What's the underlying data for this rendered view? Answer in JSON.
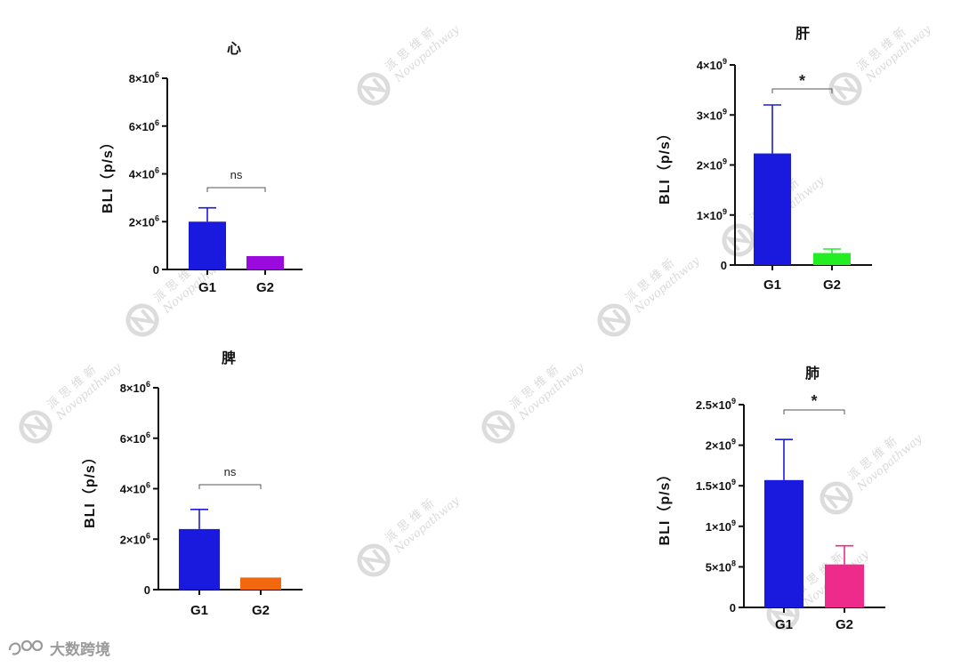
{
  "footer": {
    "brand": "大数跨境"
  },
  "watermark": {
    "cn": "派思维新",
    "en": "Novopathway"
  },
  "charts": [
    {
      "title": "心",
      "ylabel": "BLI（p/s）",
      "yticks": [
        {
          "v": 0,
          "m": "0",
          "e": ""
        },
        {
          "v": 2000000,
          "m": "2×10",
          "e": "6"
        },
        {
          "v": 4000000,
          "m": "4×10",
          "e": "6"
        },
        {
          "v": 6000000,
          "m": "6×10",
          "e": "6"
        },
        {
          "v": 8000000,
          "m": "8×10",
          "e": "6"
        }
      ],
      "sig": "ns"
    },
    {
      "title": "肝",
      "ylabel": "BLI（p/s）",
      "yticks": [
        {
          "v": 0,
          "m": "0",
          "e": ""
        },
        {
          "v": 1000000000,
          "m": "1×10",
          "e": "9"
        },
        {
          "v": 2000000000,
          "m": "2×10",
          "e": "9"
        },
        {
          "v": 3000000000,
          "m": "3×10",
          "e": "9"
        },
        {
          "v": 4000000000,
          "m": "4×10",
          "e": "9"
        }
      ],
      "sig": "*"
    },
    {
      "title": "脾",
      "ylabel": "BLI（p/s）",
      "yticks": [
        {
          "v": 0,
          "m": "0",
          "e": ""
        },
        {
          "v": 2000000,
          "m": "2×10",
          "e": "6"
        },
        {
          "v": 4000000,
          "m": "4×10",
          "e": "6"
        },
        {
          "v": 6000000,
          "m": "6×10",
          "e": "6"
        },
        {
          "v": 8000000,
          "m": "8×10",
          "e": "6"
        }
      ],
      "sig": "ns"
    },
    {
      "title": "肺",
      "ylabel": "BLI（p/s）",
      "yticks": [
        {
          "v": 0,
          "m": "0",
          "e": ""
        },
        {
          "v": 500000000,
          "m": "5×10",
          "e": "8"
        },
        {
          "v": 1000000000,
          "m": "1×10",
          "e": "9"
        },
        {
          "v": 1500000000,
          "m": "1.5×10",
          "e": "9"
        },
        {
          "v": 2000000000,
          "m": "2×10",
          "e": "9"
        },
        {
          "v": 2500000000,
          "m": "2.5×10",
          "e": "9"
        }
      ],
      "sig": "*"
    }
  ],
  "chart_data": [
    {
      "type": "bar",
      "title": "心",
      "xlabel": "",
      "ylabel": "BLI（p/s）",
      "categories": [
        "G1",
        "G2"
      ],
      "values": [
        2000000,
        560000
      ],
      "error_upper": [
        2580000,
        560000
      ],
      "colors": [
        "#1a1adf",
        "#9a0adf"
      ],
      "ylim": [
        0,
        8000000
      ],
      "grid": false,
      "legend": "none",
      "annotation": {
        "text": "ns",
        "between": [
          "G1",
          "G2"
        ]
      }
    },
    {
      "type": "bar",
      "title": "肝",
      "xlabel": "",
      "ylabel": "BLI（p/s）",
      "categories": [
        "G1",
        "G2"
      ],
      "values": [
        2230000000,
        240000000
      ],
      "error_upper": [
        3200000000,
        320000000
      ],
      "colors": [
        "#1a1adf",
        "#22ee22"
      ],
      "ylim": [
        0,
        4000000000
      ],
      "grid": false,
      "legend": "none",
      "annotation": {
        "text": "*",
        "between": [
          "G1",
          "G2"
        ]
      }
    },
    {
      "type": "bar",
      "title": "脾",
      "xlabel": "",
      "ylabel": "BLI（p/s）",
      "categories": [
        "G1",
        "G2"
      ],
      "values": [
        2400000,
        480000
      ],
      "error_upper": [
        3180000,
        480000
      ],
      "colors": [
        "#1a1adf",
        "#f2680f"
      ],
      "ylim": [
        0,
        8000000
      ],
      "grid": false,
      "legend": "none",
      "annotation": {
        "text": "ns",
        "between": [
          "G1",
          "G2"
        ]
      }
    },
    {
      "type": "bar",
      "title": "肺",
      "xlabel": "",
      "ylabel": "BLI（p/s）",
      "categories": [
        "G1",
        "G2"
      ],
      "values": [
        1570000000,
        530000000
      ],
      "error_upper": [
        2070000000,
        760000000
      ],
      "colors": [
        "#1a1adf",
        "#ee2a8a"
      ],
      "ylim": [
        0,
        2500000000
      ],
      "grid": false,
      "legend": "none",
      "annotation": {
        "text": "*",
        "between": [
          "G1",
          "G2"
        ]
      }
    }
  ]
}
